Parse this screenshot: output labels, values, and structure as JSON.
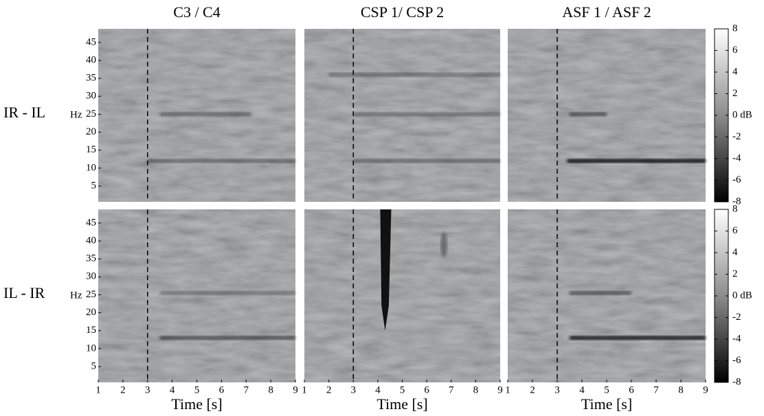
{
  "chart_data": {
    "type": "heatmap",
    "column_titles": [
      "C3 / C4",
      "CSP 1/ CSP 2",
      "ASF 1 / ASF 2"
    ],
    "row_labels": [
      "IR - IL",
      "IL - IR"
    ],
    "y_unit": "Hz",
    "xlabel": "Time [s]",
    "xlim": [
      1,
      9
    ],
    "xticks": [
      1,
      2,
      3,
      4,
      5,
      6,
      7,
      8,
      9
    ],
    "ylim": [
      0.6,
      48.8
    ],
    "yticks": [
      5,
      10,
      15,
      20,
      25,
      30,
      35,
      40,
      45
    ],
    "vline_x": 3,
    "colorbar": {
      "lim": [
        -8,
        8
      ],
      "ticks": [
        -8,
        -6,
        -4,
        -2,
        {
          "value": 0,
          "label": "0 dB"
        },
        2,
        4,
        6,
        8
      ]
    }
  }
}
